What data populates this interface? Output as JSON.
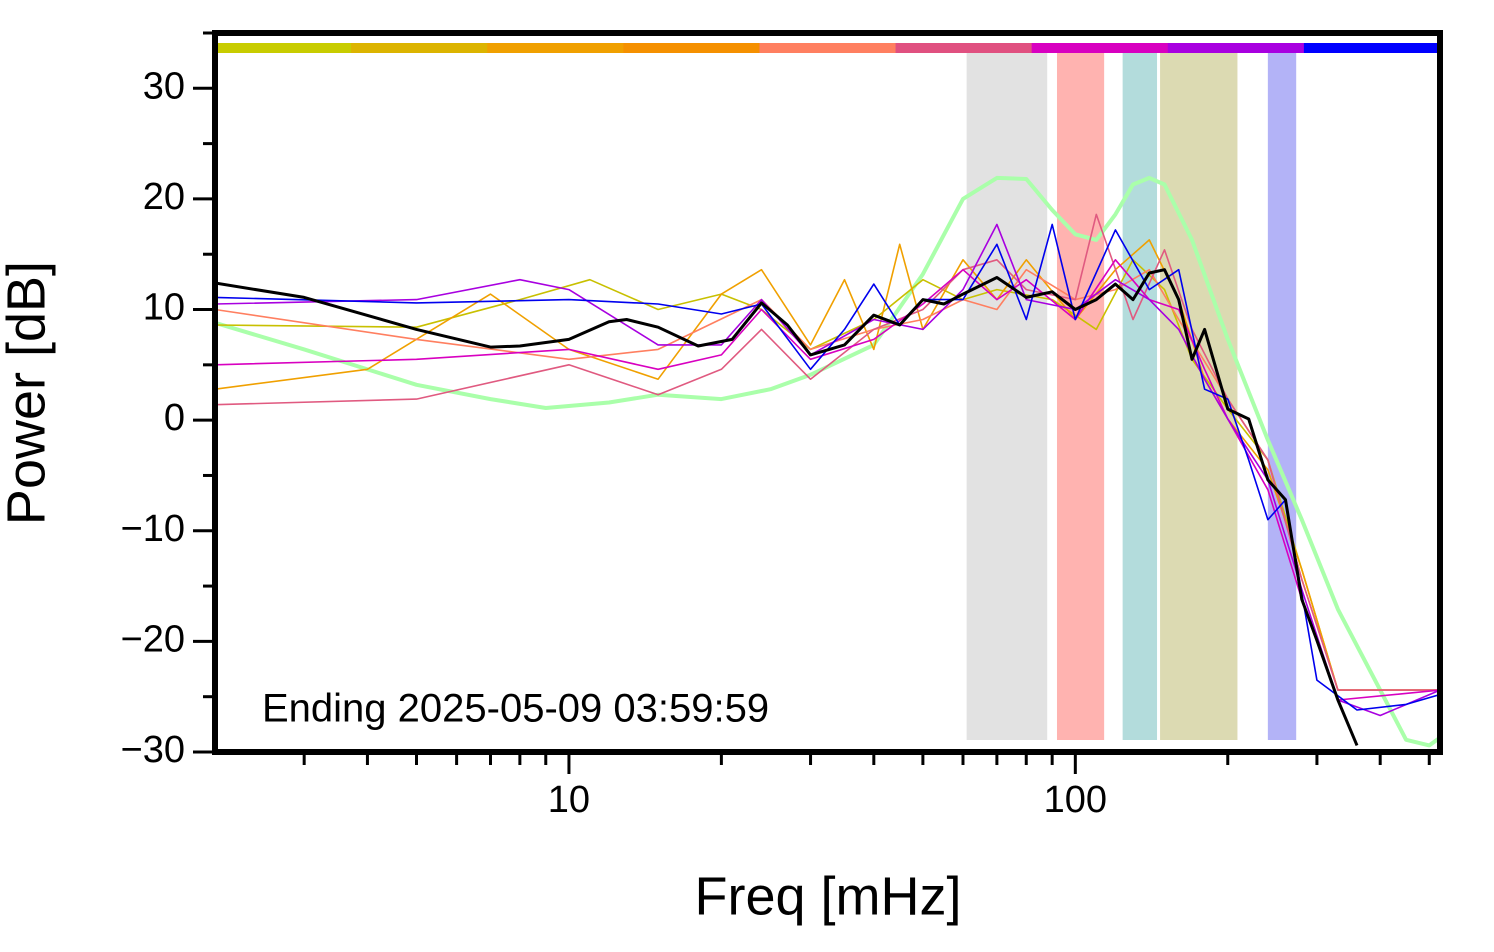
{
  "chart_data": {
    "type": "line",
    "xlabel": "Freq [mHz]",
    "ylabel": "Power [dB]",
    "annotation": "Ending 2025-05-09 03:59:59",
    "xscale": "log",
    "xlim": [
      2,
      525
    ],
    "ylim": [
      -30,
      35
    ],
    "xticks": [
      10,
      100
    ],
    "xminorticks": [
      3,
      4,
      5,
      6,
      7,
      8,
      9,
      20,
      30,
      40,
      50,
      60,
      70,
      80,
      90,
      200,
      300,
      400,
      500
    ],
    "yticks": [
      {
        "value": -30,
        "label": "−30"
      },
      {
        "value": -20,
        "label": "−20"
      },
      {
        "value": -10,
        "label": "−10"
      },
      0,
      10,
      20,
      30
    ],
    "yminorticks": [
      -25,
      -15,
      -5,
      5,
      15,
      25,
      35
    ],
    "color_bar": [
      "#c8cc00",
      "#dcb400",
      "#f0a000",
      "#f59000",
      "#ff7f60",
      "#e05080",
      "#d800c0",
      "#a800e0",
      "#0000ff"
    ],
    "bands": [
      {
        "x0": 61,
        "x1": 88,
        "color": "#e2e2e2"
      },
      {
        "x0": 92,
        "x1": 114,
        "color": "#ffb3b0"
      },
      {
        "x0": 124,
        "x1": 145,
        "color": "#b3dcdc"
      },
      {
        "x0": 147,
        "x1": 209,
        "color": "#dcdab2"
      },
      {
        "x0": 240,
        "x1": 273,
        "color": "#b3b3f7"
      }
    ],
    "series": [
      {
        "color": "#aaffaa",
        "width": 4,
        "x": [
          2,
          3,
          5,
          7,
          9,
          12,
          15,
          20,
          25,
          30,
          40,
          50,
          60,
          70,
          80,
          90,
          100,
          110,
          120,
          130,
          140,
          150,
          170,
          200,
          240,
          280,
          330,
          400,
          450,
          500,
          525
        ],
        "values": [
          8.8,
          6.4,
          3.2,
          1.9,
          1.1,
          1.6,
          2.3,
          1.9,
          2.8,
          4.1,
          6.8,
          13.2,
          20,
          21.9,
          21.8,
          19,
          16.8,
          16.3,
          18.6,
          21.3,
          21.9,
          21.3,
          16.3,
          7.3,
          -1.8,
          -9,
          -17.1,
          -24.4,
          -28.9,
          -29.4,
          -28.7
        ]
      },
      {
        "color": "#c8c000",
        "width": 1.6,
        "x": [
          2,
          5,
          8,
          11,
          15,
          20,
          24,
          30,
          40,
          50,
          60,
          70,
          90,
          110,
          130,
          150,
          170,
          200,
          240,
          280,
          330,
          525
        ],
        "values": [
          8.6,
          8.4,
          10.9,
          12.7,
          10,
          11.4,
          10,
          6.4,
          9.1,
          12.7,
          10.9,
          11.8,
          10.9,
          8.2,
          14.5,
          11.8,
          5.5,
          1,
          -3.6,
          -13.5,
          -24.4,
          -24.4
        ]
      },
      {
        "color": "#f0a000",
        "width": 1.6,
        "x": [
          2,
          4,
          7,
          10,
          15,
          20,
          24,
          30,
          35,
          40,
          45,
          50,
          60,
          70,
          80,
          100,
          120,
          140,
          160,
          180,
          200,
          240,
          280,
          330,
          525
        ],
        "values": [
          2.8,
          4.6,
          11.4,
          6.4,
          3.7,
          11.4,
          13.6,
          6.8,
          12.7,
          6.4,
          15.9,
          8.2,
          14.5,
          10.9,
          14.5,
          9.1,
          13.6,
          16.3,
          10.9,
          3.7,
          0.1,
          -4.5,
          -13.5,
          -24.4,
          -24.4
        ]
      },
      {
        "color": "#ff7f60",
        "width": 1.6,
        "x": [
          2,
          5,
          10,
          15,
          24,
          30,
          40,
          50,
          60,
          70,
          80,
          100,
          120,
          140,
          160,
          200,
          240,
          280,
          330,
          525
        ],
        "values": [
          10,
          7.3,
          5.5,
          6.4,
          10.9,
          6.4,
          8.2,
          9.1,
          10.9,
          10,
          13.6,
          10.9,
          11.8,
          13.6,
          9.1,
          1.9,
          -3.6,
          -14.4,
          -24.4,
          -24.4
        ]
      },
      {
        "color": "#e05a80",
        "width": 1.6,
        "x": [
          2,
          5,
          10,
          15,
          20,
          24,
          30,
          40,
          50,
          60,
          70,
          80,
          100,
          110,
          130,
          150,
          170,
          200,
          240,
          280,
          330,
          525
        ],
        "values": [
          1.4,
          1.9,
          5,
          2.3,
          4.6,
          8.2,
          3.7,
          8.2,
          10,
          13.6,
          14.5,
          11.8,
          10.9,
          18.6,
          9.1,
          15.4,
          8.2,
          1.9,
          -3.6,
          -14.4,
          -24.4,
          -24.4
        ]
      },
      {
        "color": "#d800c0",
        "width": 1.6,
        "x": [
          2,
          5,
          10,
          15,
          20,
          24,
          30,
          40,
          50,
          60,
          70,
          80,
          100,
          120,
          140,
          160,
          180,
          200,
          240,
          280,
          330,
          525
        ],
        "values": [
          5,
          5.5,
          6.4,
          4.6,
          5.9,
          10,
          5.5,
          7.3,
          10.5,
          13.6,
          10.9,
          12.7,
          9.1,
          14.5,
          10.9,
          10,
          4.6,
          0.1,
          -6.3,
          -16.2,
          -25.3,
          -24.4
        ]
      },
      {
        "color": "#a800e0",
        "width": 1.6,
        "x": [
          2,
          5,
          8,
          10,
          15,
          20,
          24,
          30,
          40,
          50,
          60,
          70,
          80,
          100,
          120,
          140,
          160,
          180,
          200,
          240,
          280,
          330,
          400,
          525
        ],
        "values": [
          10.5,
          10.9,
          12.7,
          11.8,
          6.8,
          6.8,
          10.9,
          5.9,
          9.1,
          8.2,
          11.8,
          17.7,
          10.9,
          10,
          12.7,
          10.9,
          8.2,
          3.7,
          0.1,
          -5.4,
          -15.3,
          -25.3,
          -26.7,
          -24.4
        ]
      },
      {
        "color": "#0000ee",
        "width": 1.6,
        "x": [
          2,
          5,
          10,
          15,
          20,
          24,
          30,
          35,
          40,
          45,
          50,
          60,
          70,
          80,
          90,
          100,
          120,
          140,
          160,
          180,
          200,
          220,
          240,
          260,
          300,
          360,
          450,
          525
        ],
        "values": [
          11.1,
          10.6,
          10.9,
          10.5,
          9.6,
          10.5,
          4.6,
          8.2,
          12.3,
          8.6,
          10.9,
          10.9,
          15.9,
          9.1,
          17.7,
          9.1,
          17.2,
          11.8,
          13.6,
          2.8,
          1.9,
          -3.6,
          -9,
          -7.2,
          -23.5,
          -26.2,
          -25.7,
          -24.8
        ]
      },
      {
        "color": "#000000",
        "width": 3,
        "x": [
          2,
          3,
          5,
          7,
          8,
          10,
          12,
          13,
          15,
          18,
          21,
          24,
          27,
          30,
          35,
          40,
          45,
          50,
          55,
          60,
          70,
          80,
          90,
          100,
          110,
          120,
          130,
          140,
          150,
          160,
          170,
          180,
          200,
          220,
          240,
          260,
          280,
          300,
          330,
          360
        ],
        "values": [
          12.4,
          11.1,
          8.2,
          6.6,
          6.7,
          7.3,
          8.9,
          9.1,
          8.4,
          6.7,
          7.3,
          10.6,
          8.6,
          5.9,
          6.8,
          9.5,
          8.6,
          10.9,
          10.5,
          11.4,
          12.9,
          11.1,
          11.6,
          10,
          10.9,
          12.3,
          10.9,
          13.3,
          13.6,
          10.9,
          5.5,
          8.2,
          1,
          0.1,
          -5.4,
          -7.2,
          -16.2,
          -19.9,
          -25.3,
          -29.4
        ]
      }
    ]
  }
}
